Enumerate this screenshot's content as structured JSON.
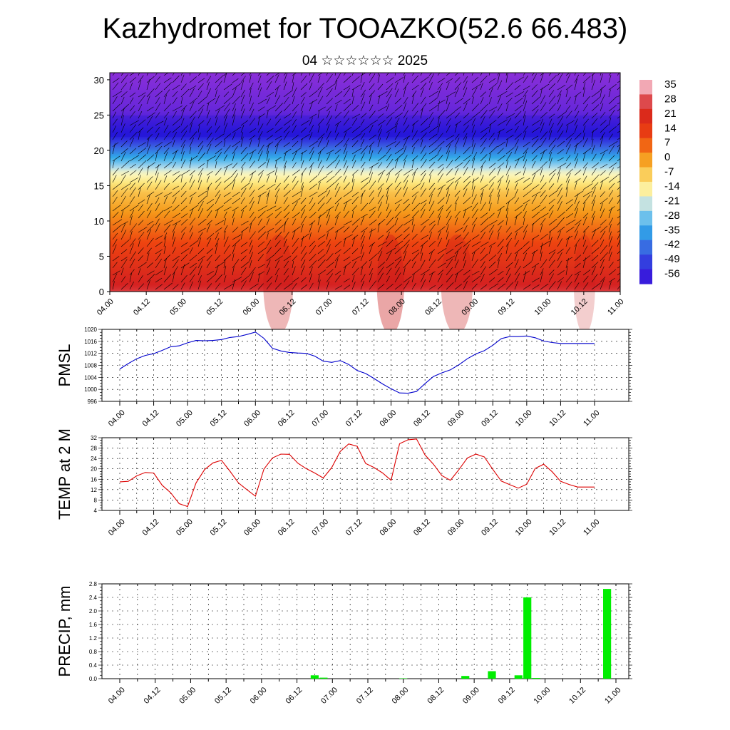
{
  "title": "Kazhydromet for TOOAZKO(52.6 66.483)",
  "subtitle": "04 ☆☆☆☆☆☆ 2025",
  "chart_data": [
    {
      "type": "heatmap",
      "description_source": "vertical cross-section with wind barbs",
      "x_tick_labels": [
        "04.00",
        "04.12",
        "05.00",
        "05.12",
        "06.00",
        "06.12",
        "07.00",
        "07.12",
        "08.00",
        "08.12",
        "09.00",
        "09.12",
        "10.00",
        "10.12",
        "11.00"
      ],
      "y_tick_labels": [
        "0",
        "5",
        "10",
        "15",
        "20",
        "25",
        "30"
      ],
      "ylim": [
        0,
        31
      ],
      "colorbar_labels": [
        "35",
        "28",
        "21",
        "14",
        "7",
        "0",
        "-7",
        "-14",
        "-21",
        "-28",
        "-35",
        "-42",
        "-49",
        "-56"
      ],
      "color_stops": [
        {
          "value": 38,
          "color": "#f2a8b4"
        },
        {
          "value": 28,
          "color": "#d42020"
        },
        {
          "value": 14,
          "color": "#ee4410"
        },
        {
          "value": 4,
          "color": "#f59a1a"
        },
        {
          "value": -8,
          "color": "#fde77a"
        },
        {
          "value": -14,
          "color": "#fbf7c2"
        },
        {
          "value": -20,
          "color": "#a8d8f0"
        },
        {
          "value": -30,
          "color": "#30a8e8"
        },
        {
          "value": -42,
          "color": "#3a58e0"
        },
        {
          "value": -52,
          "color": "#2818dd"
        },
        {
          "value": -58,
          "color": "#8a2fd8"
        }
      ]
    },
    {
      "type": "line",
      "ylabel": "PMSL",
      "color": "#0000cc",
      "ylim": [
        996,
        1020
      ],
      "y_ticks": [
        996,
        1000,
        1004,
        1008,
        1012,
        1016,
        1020
      ],
      "x_tick_labels": [
        "04.00",
        "04.12",
        "05.00",
        "05.12",
        "06.00",
        "06.12",
        "07.00",
        "07.12",
        "08.00",
        "08.12",
        "09.00",
        "09.12",
        "10.00",
        "10.12",
        "11.00"
      ],
      "x": [
        0,
        3,
        6,
        9,
        12,
        15,
        18,
        21,
        24,
        27,
        30,
        33,
        36,
        39,
        42,
        45,
        48,
        51,
        54,
        57,
        60,
        63,
        66,
        69,
        72,
        75,
        78,
        81,
        84,
        87,
        90,
        93,
        96,
        99,
        102,
        105,
        108,
        111,
        114,
        117,
        120,
        123,
        126,
        129,
        132,
        135,
        138,
        141,
        144,
        147,
        150,
        153,
        156,
        159,
        162,
        165,
        168
      ],
      "values": [
        1006.8,
        1008.6,
        1010.2,
        1011.3,
        1011.9,
        1013.0,
        1014.2,
        1014.5,
        1015.5,
        1016.3,
        1016.2,
        1016.3,
        1016.6,
        1017.3,
        1017.6,
        1018.3,
        1019.1,
        1017.0,
        1013.7,
        1012.8,
        1012.3,
        1012.1,
        1012.0,
        1011.1,
        1009.4,
        1009.0,
        1009.6,
        1008.3,
        1006.3,
        1005.3,
        1003.6,
        1001.8,
        1000.2,
        998.8,
        998.7,
        999.3,
        1001.9,
        1004.3,
        1005.5,
        1006.5,
        1008.2,
        1010.2,
        1011.8,
        1012.9,
        1014.7,
        1016.9,
        1017.6,
        1017.6,
        1017.8,
        1017.2,
        1016.1,
        1015.6,
        1015.3,
        1015.3,
        1015.3,
        1015.3,
        1015.3
      ]
    },
    {
      "type": "line",
      "ylabel": "TEMP at 2 M",
      "color": "#dd0000",
      "ylim": [
        4,
        32
      ],
      "y_ticks": [
        4,
        8,
        12,
        16,
        20,
        24,
        28,
        32
      ],
      "x_tick_labels": [
        "04.00",
        "04.12",
        "05.00",
        "05.12",
        "06.00",
        "06.12",
        "07.00",
        "07.12",
        "08.00",
        "08.12",
        "09.00",
        "09.12",
        "10.00",
        "10.12",
        "11.00"
      ],
      "x": [
        0,
        3,
        6,
        9,
        12,
        15,
        18,
        21,
        24,
        27,
        30,
        33,
        36,
        39,
        42,
        45,
        48,
        51,
        54,
        57,
        60,
        63,
        66,
        69,
        72,
        75,
        78,
        81,
        84,
        87,
        90,
        93,
        96,
        99,
        102,
        105,
        108,
        111,
        114,
        117,
        120,
        123,
        126,
        129,
        132,
        135,
        138,
        141,
        144,
        147,
        150,
        153,
        156,
        159,
        162,
        165,
        168
      ],
      "values": [
        15,
        15.2,
        17.3,
        18.6,
        18.4,
        13.7,
        10.8,
        6.6,
        5.5,
        14.6,
        19.7,
        22.3,
        23.3,
        19.1,
        14.6,
        12,
        9.5,
        19.9,
        24.2,
        25.7,
        25.6,
        22.2,
        20.1,
        18.4,
        16.5,
        20.5,
        26.7,
        29.6,
        28.7,
        22.1,
        20.5,
        18.4,
        15.6,
        29.7,
        31.2,
        31.5,
        25.4,
        21.8,
        17.4,
        15.6,
        19.7,
        24.2,
        25.7,
        24.6,
        19.8,
        15.3,
        13.9,
        12.6,
        14.1,
        20.2,
        21.8,
        18.9,
        15.2,
        14,
        13,
        13,
        13
      ]
    },
    {
      "type": "bar",
      "ylabel": "PRECIP, mm",
      "color": "#00ee00",
      "ylim": [
        0,
        2.8
      ],
      "y_ticks": [
        0,
        0.4,
        0.8,
        1.2,
        1.6,
        2.0,
        2.4,
        2.8
      ],
      "y_tick_labels": [
        "0.0",
        "0.4",
        "0.8",
        "1.2",
        "1.6",
        "2.0",
        "2.4",
        "2.8"
      ],
      "x_tick_labels": [
        "04.00",
        "04.12",
        "05.00",
        "05.12",
        "06.00",
        "06.12",
        "07.00",
        "07.12",
        "08.00",
        "08.12",
        "09.00",
        "09.12",
        "10.00",
        "10.12",
        "11.00"
      ],
      "x": [
        66,
        69,
        96,
        117,
        126,
        135,
        138,
        141,
        165
      ],
      "values": [
        0.1,
        0.03,
        0.01,
        0.08,
        0.22,
        0.1,
        2.4,
        0.02,
        2.65
      ]
    }
  ]
}
